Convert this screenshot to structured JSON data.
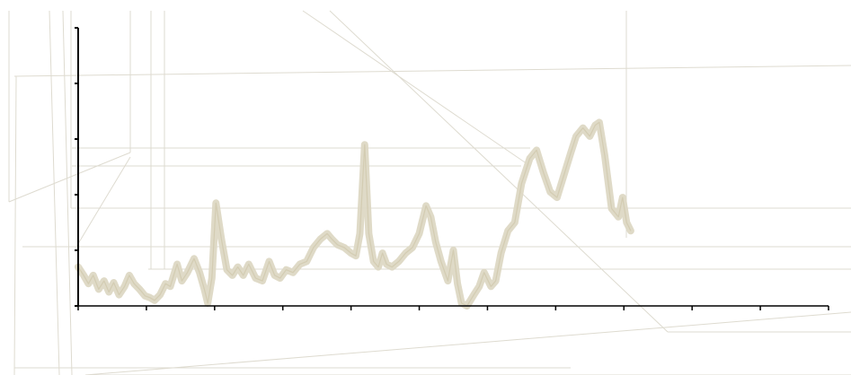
{
  "chart_data": {
    "type": "line",
    "title": "",
    "xlabel": "",
    "ylabel": "",
    "xlim": [
      0,
      11
    ],
    "ylim": [
      0,
      5
    ],
    "x_ticks": [
      0,
      1,
      2,
      3,
      4,
      5,
      6,
      7,
      8,
      9,
      10,
      11
    ],
    "y_ticks": [
      0,
      1,
      2,
      3,
      4,
      5
    ],
    "show_tick_labels": false,
    "grid": false,
    "legend": "none",
    "series": [
      {
        "color": "#ddd8c4",
        "points": [
          [
            0.0,
            0.7
          ],
          [
            0.08,
            0.55
          ],
          [
            0.15,
            0.4
          ],
          [
            0.22,
            0.55
          ],
          [
            0.3,
            0.3
          ],
          [
            0.38,
            0.45
          ],
          [
            0.45,
            0.25
          ],
          [
            0.52,
            0.42
          ],
          [
            0.6,
            0.2
          ],
          [
            0.68,
            0.35
          ],
          [
            0.75,
            0.55
          ],
          [
            0.82,
            0.4
          ],
          [
            0.9,
            0.3
          ],
          [
            0.98,
            0.18
          ],
          [
            1.05,
            0.15
          ],
          [
            1.12,
            0.1
          ],
          [
            1.2,
            0.2
          ],
          [
            1.28,
            0.4
          ],
          [
            1.35,
            0.35
          ],
          [
            1.45,
            0.75
          ],
          [
            1.52,
            0.45
          ],
          [
            1.6,
            0.6
          ],
          [
            1.7,
            0.85
          ],
          [
            1.78,
            0.6
          ],
          [
            1.85,
            0.3
          ],
          [
            1.9,
            0.05
          ],
          [
            1.96,
            0.5
          ],
          [
            2.02,
            1.85
          ],
          [
            2.1,
            1.2
          ],
          [
            2.18,
            0.65
          ],
          [
            2.26,
            0.55
          ],
          [
            2.34,
            0.7
          ],
          [
            2.42,
            0.55
          ],
          [
            2.5,
            0.75
          ],
          [
            2.6,
            0.5
          ],
          [
            2.7,
            0.45
          ],
          [
            2.8,
            0.8
          ],
          [
            2.88,
            0.55
          ],
          [
            2.96,
            0.5
          ],
          [
            3.05,
            0.65
          ],
          [
            3.15,
            0.6
          ],
          [
            3.25,
            0.75
          ],
          [
            3.35,
            0.8
          ],
          [
            3.45,
            1.05
          ],
          [
            3.55,
            1.2
          ],
          [
            3.65,
            1.3
          ],
          [
            3.72,
            1.2
          ],
          [
            3.8,
            1.1
          ],
          [
            3.9,
            1.05
          ],
          [
            4.0,
            0.95
          ],
          [
            4.07,
            0.9
          ],
          [
            4.13,
            1.3
          ],
          [
            4.2,
            2.9
          ],
          [
            4.26,
            1.3
          ],
          [
            4.33,
            0.8
          ],
          [
            4.4,
            0.7
          ],
          [
            4.46,
            0.95
          ],
          [
            4.52,
            0.75
          ],
          [
            4.6,
            0.7
          ],
          [
            4.7,
            0.8
          ],
          [
            4.8,
            0.95
          ],
          [
            4.9,
            1.05
          ],
          [
            5.0,
            1.3
          ],
          [
            5.1,
            1.8
          ],
          [
            5.17,
            1.6
          ],
          [
            5.24,
            1.15
          ],
          [
            5.32,
            0.8
          ],
          [
            5.42,
            0.45
          ],
          [
            5.5,
            1.0
          ],
          [
            5.56,
            0.4
          ],
          [
            5.62,
            0.05
          ],
          [
            5.7,
            0.0
          ],
          [
            5.8,
            0.2
          ],
          [
            5.88,
            0.35
          ],
          [
            5.95,
            0.6
          ],
          [
            6.05,
            0.35
          ],
          [
            6.12,
            0.45
          ],
          [
            6.2,
            0.95
          ],
          [
            6.3,
            1.35
          ],
          [
            6.4,
            1.5
          ],
          [
            6.5,
            2.2
          ],
          [
            6.62,
            2.65
          ],
          [
            6.72,
            2.8
          ],
          [
            6.82,
            2.4
          ],
          [
            6.92,
            2.05
          ],
          [
            7.02,
            1.95
          ],
          [
            7.12,
            2.35
          ],
          [
            7.22,
            2.75
          ],
          [
            7.3,
            3.05
          ],
          [
            7.4,
            3.2
          ],
          [
            7.5,
            3.05
          ],
          [
            7.58,
            3.25
          ],
          [
            7.64,
            3.3
          ],
          [
            7.72,
            2.7
          ],
          [
            7.82,
            1.75
          ],
          [
            7.92,
            1.6
          ],
          [
            7.98,
            1.95
          ],
          [
            8.04,
            1.5
          ],
          [
            8.1,
            1.35
          ]
        ]
      }
    ]
  }
}
